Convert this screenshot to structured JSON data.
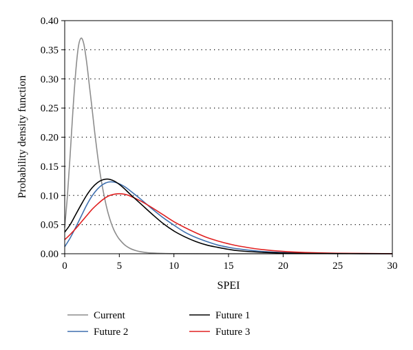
{
  "chart_data": {
    "type": "line",
    "xlabel": "SPEI",
    "ylabel": "Probability density function",
    "xlim": [
      0,
      30
    ],
    "ylim": [
      0,
      0.4
    ],
    "x_ticks": [
      "0",
      "5",
      "10",
      "15",
      "20",
      "25",
      "30"
    ],
    "y_ticks": [
      "0.00",
      "0.05",
      "0.10",
      "0.15",
      "0.20",
      "0.25",
      "0.30",
      "0.35",
      "0.40"
    ],
    "grid": "dotted horizontal",
    "legend_position": "bottom",
    "series": [
      {
        "name": "Current",
        "color": "#8c8c8c",
        "x": [
          0,
          0.25,
          0.5,
          0.75,
          1,
          1.25,
          1.5,
          1.75,
          2,
          2.25,
          2.5,
          2.75,
          3,
          3.25,
          3.5,
          3.75,
          4,
          4.25,
          4.5,
          4.75,
          5,
          5.5,
          6,
          6.5,
          7,
          7.5,
          8,
          9,
          10,
          12,
          15,
          20,
          30
        ],
        "y": [
          0.045,
          0.1,
          0.17,
          0.245,
          0.31,
          0.355,
          0.37,
          0.36,
          0.33,
          0.29,
          0.25,
          0.208,
          0.17,
          0.137,
          0.11,
          0.087,
          0.068,
          0.053,
          0.041,
          0.032,
          0.025,
          0.015,
          0.009,
          0.0055,
          0.0033,
          0.002,
          0.0012,
          0.0005,
          0.0002,
          5e-05,
          0,
          0,
          0
        ]
      },
      {
        "name": "Future 1",
        "color": "#000000",
        "x": [
          0,
          0.5,
          1,
          1.5,
          2,
          2.5,
          3,
          3.5,
          4,
          4.5,
          5,
          5.5,
          6,
          7,
          8,
          9,
          10,
          11,
          12,
          13,
          14,
          15,
          16,
          18,
          20,
          22,
          25,
          30
        ],
        "y": [
          0.037,
          0.05,
          0.067,
          0.084,
          0.1,
          0.113,
          0.122,
          0.127,
          0.128,
          0.125,
          0.119,
          0.111,
          0.102,
          0.085,
          0.068,
          0.052,
          0.039,
          0.029,
          0.021,
          0.015,
          0.011,
          0.0075,
          0.005,
          0.0025,
          0.0012,
          0.0006,
          0.0002,
          0
        ]
      },
      {
        "name": "Future 2",
        "color": "#3e6fae",
        "x": [
          0,
          0.5,
          1,
          1.5,
          2,
          2.5,
          3,
          3.5,
          4,
          4.5,
          5,
          5.5,
          6,
          7,
          8,
          9,
          10,
          11,
          12,
          13,
          14,
          15,
          16,
          18,
          20,
          22,
          25,
          30
        ],
        "y": [
          0.012,
          0.027,
          0.045,
          0.064,
          0.083,
          0.099,
          0.111,
          0.119,
          0.123,
          0.123,
          0.12,
          0.115,
          0.108,
          0.093,
          0.077,
          0.062,
          0.049,
          0.037,
          0.028,
          0.021,
          0.015,
          0.011,
          0.008,
          0.004,
          0.002,
          0.001,
          0.0004,
          0
        ]
      },
      {
        "name": "Future 3",
        "color": "#e02020",
        "x": [
          0,
          0.5,
          1,
          1.5,
          2,
          2.5,
          3,
          3.5,
          4,
          4.5,
          5,
          5.5,
          6,
          7,
          8,
          9,
          10,
          11,
          12,
          13,
          14,
          15,
          16,
          18,
          20,
          22,
          25,
          30
        ],
        "y": [
          0.024,
          0.033,
          0.043,
          0.054,
          0.065,
          0.076,
          0.085,
          0.093,
          0.099,
          0.102,
          0.103,
          0.102,
          0.099,
          0.09,
          0.079,
          0.067,
          0.055,
          0.045,
          0.036,
          0.028,
          0.022,
          0.017,
          0.013,
          0.0073,
          0.004,
          0.0022,
          0.0009,
          0.0001
        ]
      }
    ],
    "legend": [
      {
        "label": "Current",
        "color": "#8c8c8c"
      },
      {
        "label": "Future 1",
        "color": "#000000"
      },
      {
        "label": "Future 2",
        "color": "#3e6fae"
      },
      {
        "label": "Future 3",
        "color": "#e02020"
      }
    ]
  }
}
